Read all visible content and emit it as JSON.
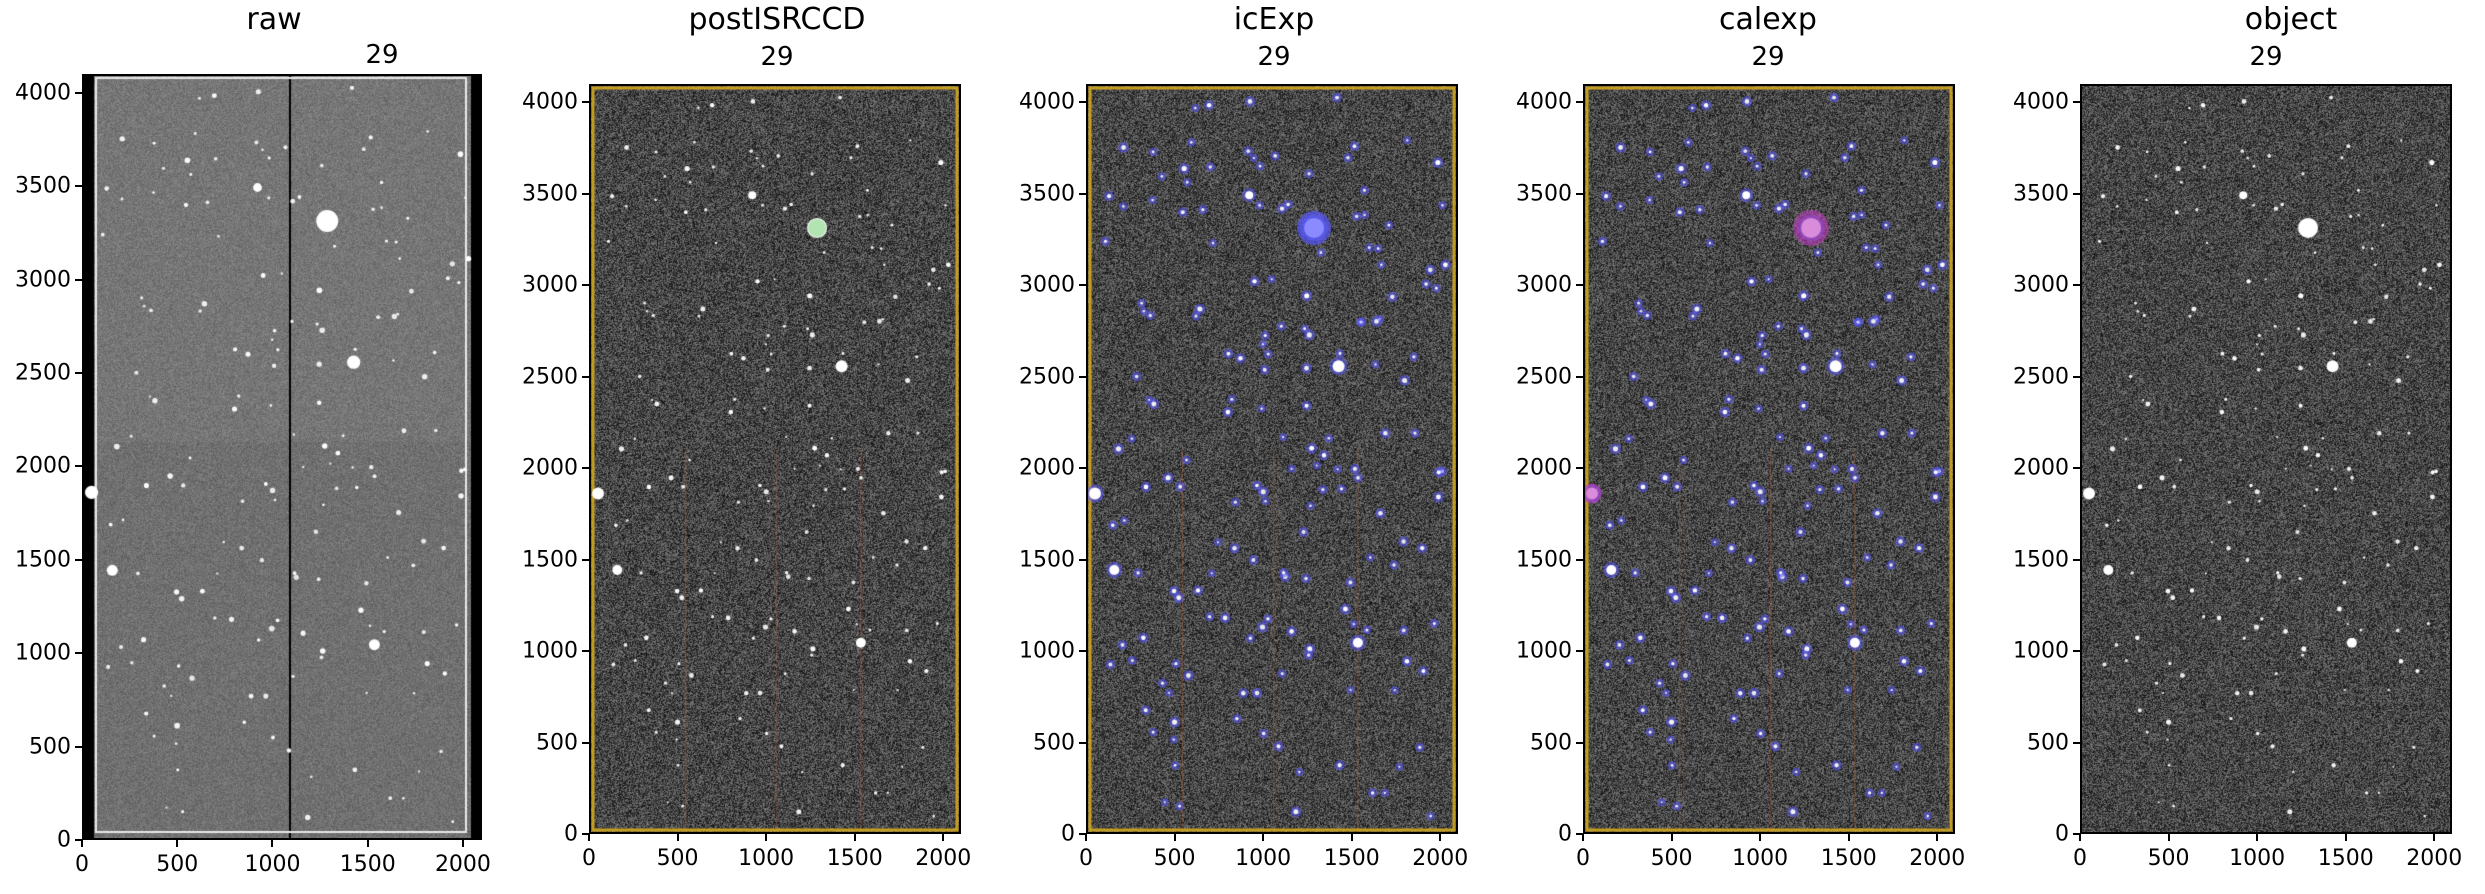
{
  "figure": {
    "panels": [
      {
        "title": "raw",
        "detector_label": "29",
        "variant": "raw"
      },
      {
        "title": "postISRCCD",
        "detector_label": "29",
        "variant": "postisr"
      },
      {
        "title": "icExp",
        "detector_label": "29",
        "variant": "icexp"
      },
      {
        "title": "calexp",
        "detector_label": "29",
        "variant": "calexp"
      },
      {
        "title": "object",
        "detector_label": "29",
        "variant": "object"
      }
    ],
    "axes": {
      "x_range": [
        0,
        2100
      ],
      "y_range": [
        0,
        4100
      ],
      "x_ticks": [
        0,
        500,
        1000,
        1500,
        2000
      ],
      "y_ticks": [
        0,
        500,
        1000,
        1500,
        2000,
        2500,
        3000,
        3500,
        4000
      ]
    },
    "colors": {
      "frame": "#000000",
      "edge_mask": "#c8a020",
      "detection_blue": "#5a5aff",
      "detection_magenta": "#c040c0",
      "bad_column": "#b06030"
    }
  }
}
